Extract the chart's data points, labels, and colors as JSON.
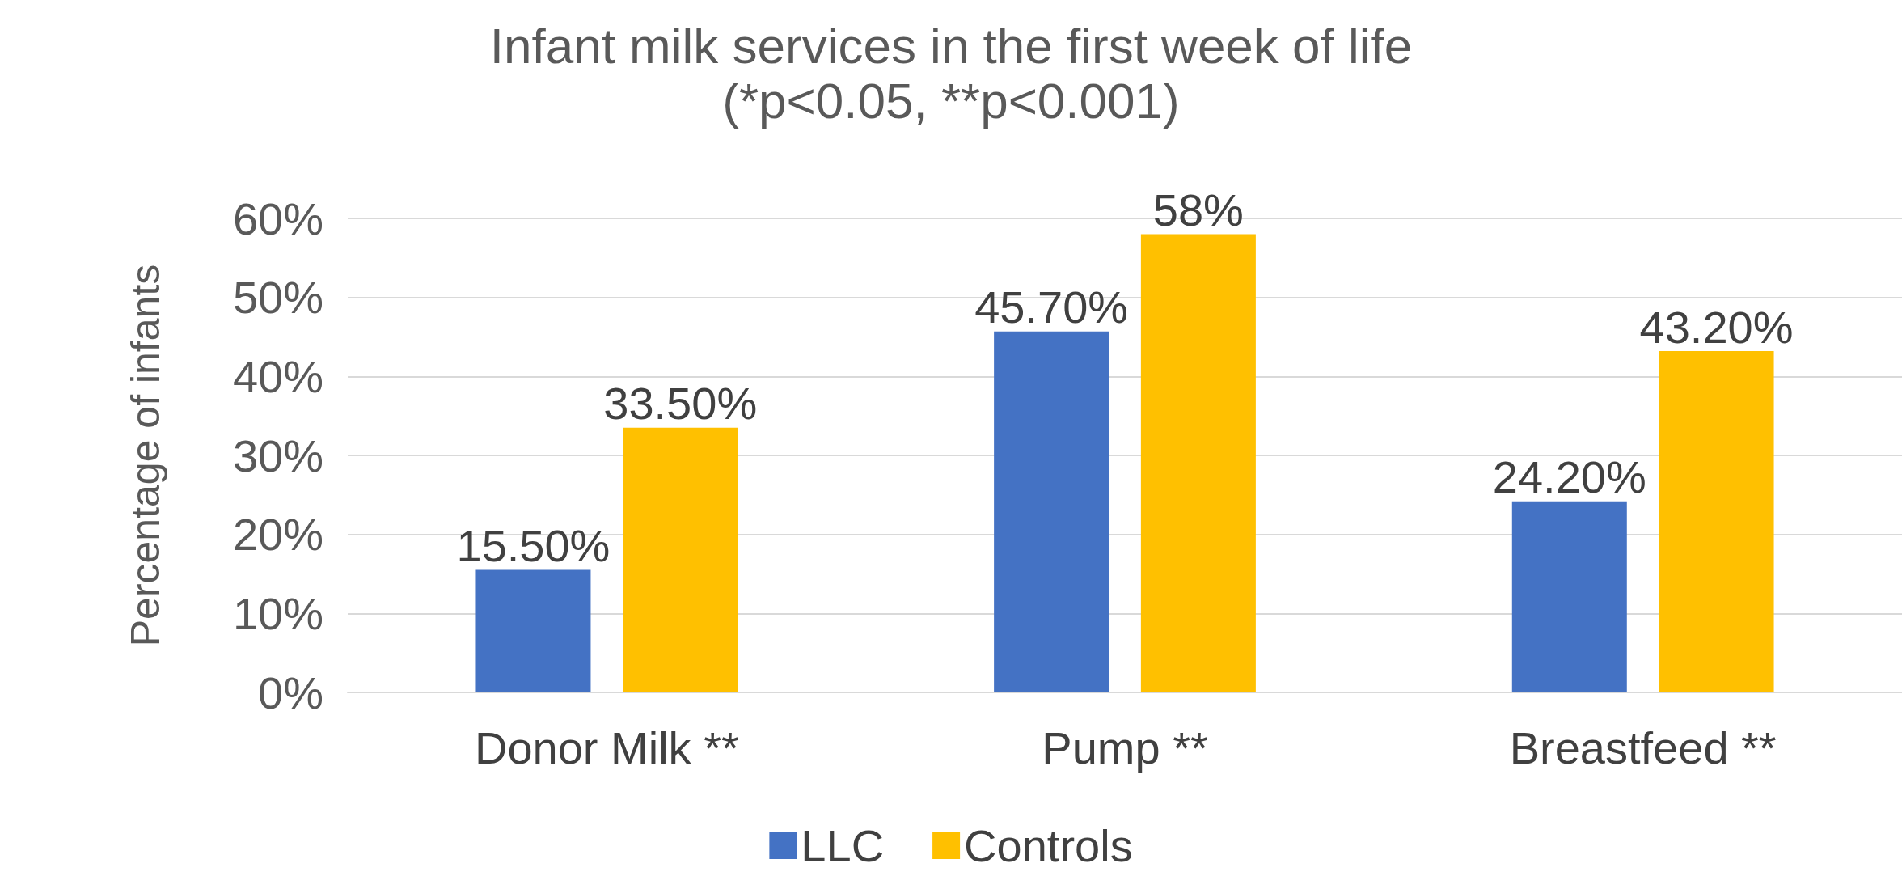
{
  "chart_data": {
    "type": "bar",
    "title": "Infant milk services in the first week of life",
    "subtitle": "(*p<0.05, **p<0.001)",
    "ylabel": "Percentage of infants",
    "categories": [
      "Donor Milk **",
      "Pump **",
      "Breastfeed **"
    ],
    "series": [
      {
        "name": "LLC",
        "color": "#4472c4",
        "values": [
          15.5,
          45.7,
          24.2
        ],
        "value_labels": [
          "15.50%",
          "45.70%",
          "24.20%"
        ]
      },
      {
        "name": "Controls",
        "color": "#ffc000",
        "values": [
          33.5,
          58,
          43.2
        ],
        "value_labels": [
          "33.50%",
          "58%",
          "43.20%"
        ]
      }
    ],
    "ylim": [
      0,
      60
    ],
    "yticks": [
      {
        "value": 0,
        "label": "0%"
      },
      {
        "value": 10,
        "label": "10%"
      },
      {
        "value": 20,
        "label": "20%"
      },
      {
        "value": 30,
        "label": "30%"
      },
      {
        "value": 40,
        "label": "40%"
      },
      {
        "value": 50,
        "label": "50%"
      },
      {
        "value": 60,
        "label": "60%"
      }
    ],
    "grid": "y",
    "legend": "bottom"
  }
}
